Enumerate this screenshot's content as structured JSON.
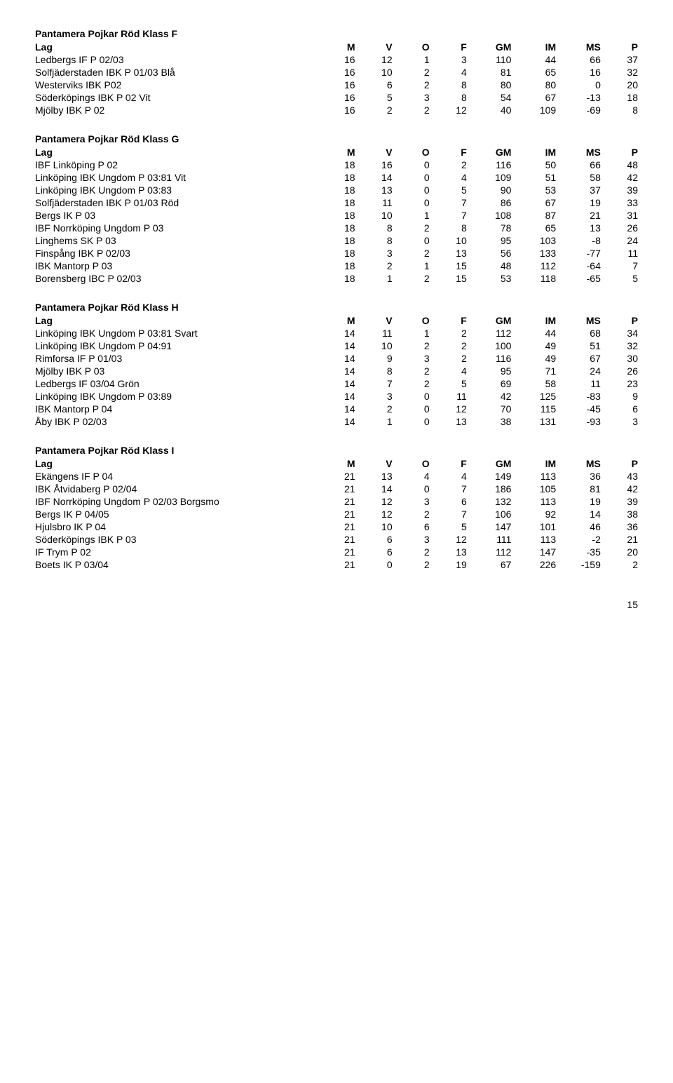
{
  "page_number": "15",
  "col_headers": [
    "Lag",
    "M",
    "V",
    "O",
    "F",
    "GM",
    "IM",
    "MS",
    "P"
  ],
  "sections": [
    {
      "title": "Pantamera Pojkar Röd Klass F",
      "rows": [
        [
          "Ledbergs IF P 02/03",
          "16",
          "12",
          "1",
          "3",
          "110",
          "44",
          "66",
          "37"
        ],
        [
          "Solfjäderstaden IBK P 01/03 Blå",
          "16",
          "10",
          "2",
          "4",
          "81",
          "65",
          "16",
          "32"
        ],
        [
          "Westerviks IBK P02",
          "16",
          "6",
          "2",
          "8",
          "80",
          "80",
          "0",
          "20"
        ],
        [
          "Söderköpings IBK P 02 Vit",
          "16",
          "5",
          "3",
          "8",
          "54",
          "67",
          "-13",
          "18"
        ],
        [
          "Mjölby IBK P 02",
          "16",
          "2",
          "2",
          "12",
          "40",
          "109",
          "-69",
          "8"
        ]
      ]
    },
    {
      "title": "Pantamera Pojkar Röd Klass G",
      "rows": [
        [
          "IBF Linköping P 02",
          "18",
          "16",
          "0",
          "2",
          "116",
          "50",
          "66",
          "48"
        ],
        [
          "Linköping IBK Ungdom P 03:81 Vit",
          "18",
          "14",
          "0",
          "4",
          "109",
          "51",
          "58",
          "42"
        ],
        [
          "Linköping IBK Ungdom P 03:83",
          "18",
          "13",
          "0",
          "5",
          "90",
          "53",
          "37",
          "39"
        ],
        [
          "Solfjäderstaden IBK P 01/03 Röd",
          "18",
          "11",
          "0",
          "7",
          "86",
          "67",
          "19",
          "33"
        ],
        [
          "Bergs IK P 03",
          "18",
          "10",
          "1",
          "7",
          "108",
          "87",
          "21",
          "31"
        ],
        [
          "IBF Norrköping Ungdom P 03",
          "18",
          "8",
          "2",
          "8",
          "78",
          "65",
          "13",
          "26"
        ],
        [
          "Linghems SK P 03",
          "18",
          "8",
          "0",
          "10",
          "95",
          "103",
          "-8",
          "24"
        ],
        [
          "Finspång IBK P 02/03",
          "18",
          "3",
          "2",
          "13",
          "56",
          "133",
          "-77",
          "11"
        ],
        [
          "IBK Mantorp P 03",
          "18",
          "2",
          "1",
          "15",
          "48",
          "112",
          "-64",
          "7"
        ],
        [
          "Borensberg IBC P 02/03",
          "18",
          "1",
          "2",
          "15",
          "53",
          "118",
          "-65",
          "5"
        ]
      ]
    },
    {
      "title": "Pantamera Pojkar Röd Klass H",
      "rows": [
        [
          "Linköping IBK Ungdom P 03:81 Svart",
          "14",
          "11",
          "1",
          "2",
          "112",
          "44",
          "68",
          "34"
        ],
        [
          "Linköping IBK Ungdom P 04:91",
          "14",
          "10",
          "2",
          "2",
          "100",
          "49",
          "51",
          "32"
        ],
        [
          "Rimforsa IF P 01/03",
          "14",
          "9",
          "3",
          "2",
          "116",
          "49",
          "67",
          "30"
        ],
        [
          "Mjölby IBK P 03",
          "14",
          "8",
          "2",
          "4",
          "95",
          "71",
          "24",
          "26"
        ],
        [
          "Ledbergs IF 03/04 Grön",
          "14",
          "7",
          "2",
          "5",
          "69",
          "58",
          "11",
          "23"
        ],
        [
          "Linköping IBK Ungdom P 03:89",
          "14",
          "3",
          "0",
          "11",
          "42",
          "125",
          "-83",
          "9"
        ],
        [
          "IBK Mantorp P 04",
          "14",
          "2",
          "0",
          "12",
          "70",
          "115",
          "-45",
          "6"
        ],
        [
          "Åby IBK P 02/03",
          "14",
          "1",
          "0",
          "13",
          "38",
          "131",
          "-93",
          "3"
        ]
      ]
    },
    {
      "title": "Pantamera Pojkar Röd Klass I",
      "rows": [
        [
          "Ekängens IF P 04",
          "21",
          "13",
          "4",
          "4",
          "149",
          "113",
          "36",
          "43"
        ],
        [
          "IBK Åtvidaberg P 02/04",
          "21",
          "14",
          "0",
          "7",
          "186",
          "105",
          "81",
          "42"
        ],
        [
          "IBF Norrköping Ungdom P 02/03 Borgsmo",
          "21",
          "12",
          "3",
          "6",
          "132",
          "113",
          "19",
          "39"
        ],
        [
          "Bergs IK P 04/05",
          "21",
          "12",
          "2",
          "7",
          "106",
          "92",
          "14",
          "38"
        ],
        [
          "Hjulsbro IK P 04",
          "21",
          "10",
          "6",
          "5",
          "147",
          "101",
          "46",
          "36"
        ],
        [
          "Söderköpings IBK P 03",
          "21",
          "6",
          "3",
          "12",
          "111",
          "113",
          "-2",
          "21"
        ],
        [
          "IF Trym P 02",
          "21",
          "6",
          "2",
          "13",
          "112",
          "147",
          "-35",
          "20"
        ],
        [
          "Boets IK P 03/04",
          "21",
          "0",
          "2",
          "19",
          "67",
          "226",
          "-159",
          "2"
        ]
      ]
    }
  ]
}
